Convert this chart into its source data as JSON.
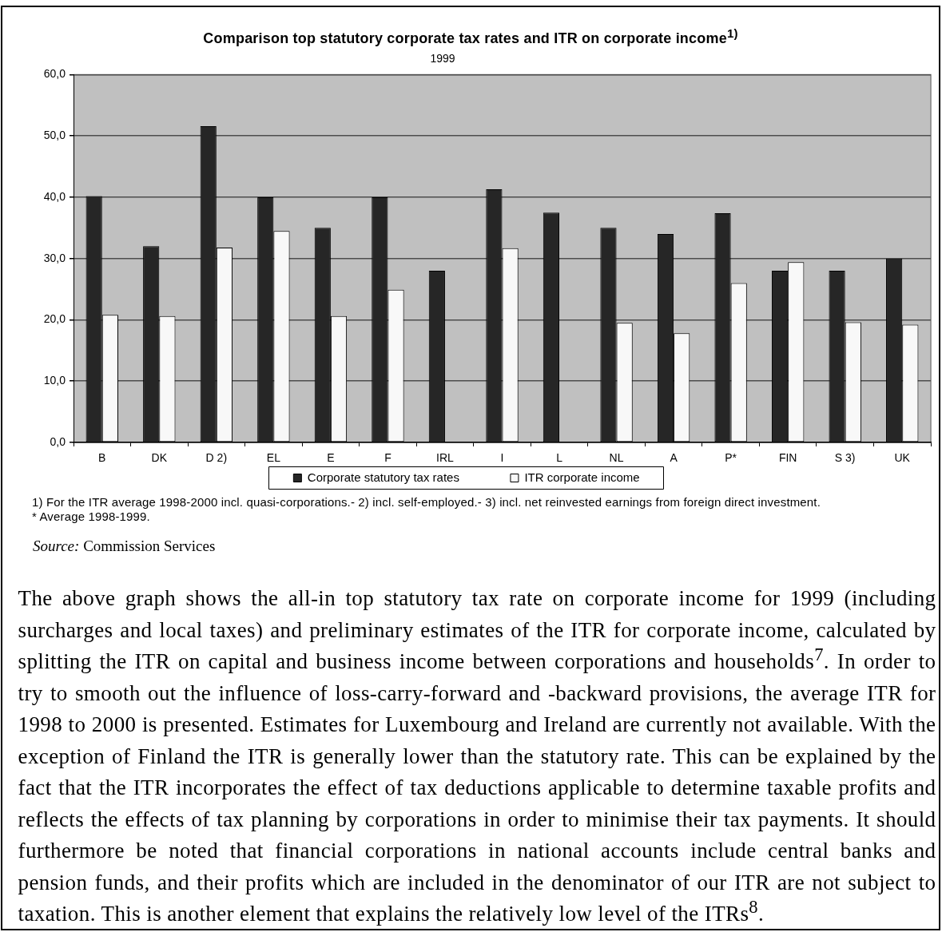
{
  "chart_data": {
    "type": "bar",
    "title": "Comparison top statutory corporate tax rates and ITR on corporate income$^{1)}$",
    "subtitle": "1999",
    "categories": [
      "B",
      "DK",
      "D 2)",
      "EL",
      "E",
      "F",
      "IRL",
      "I",
      "L",
      "NL",
      "A",
      "P*",
      "FIN",
      "S 3)",
      "UK"
    ],
    "series": [
      {
        "name": "Corporate statutory tax rates",
        "color": "#262626",
        "values": [
          40.2,
          32.0,
          51.6,
          40.0,
          35.0,
          40.0,
          28.0,
          41.3,
          37.5,
          35.0,
          34.0,
          37.4,
          28.0,
          28.0,
          30.0
        ]
      },
      {
        "name": "ITR corporate income",
        "color": "#f8f8f8",
        "values": [
          20.8,
          20.6,
          31.8,
          34.5,
          20.6,
          24.9,
          null,
          31.7,
          null,
          19.5,
          17.8,
          26.0,
          29.4,
          19.6,
          19.2
        ]
      }
    ],
    "ylim": [
      0,
      60
    ],
    "yticks": [
      {
        "value": 0,
        "label": "0,0"
      },
      {
        "value": 10,
        "label": "10,0"
      },
      {
        "value": 20,
        "label": "20,0"
      },
      {
        "value": 30,
        "label": "30,0"
      },
      {
        "value": 40,
        "label": "40,0"
      },
      {
        "value": 50,
        "label": "50,0"
      },
      {
        "value": 60,
        "label": "60,0"
      }
    ],
    "grid": "y",
    "legend": "bottom",
    "annotations": [
      "1) For the ITR average 1998-2000 incl. quasi-corporations.- 2) incl. self-employed.- 3) incl. net reinvested earnings from foreign direct investment.",
      "* Average 1998-1999.",
      "Source: Commission Services",
      "The above graph shows the all-in top statutory tax rate on corporate income for 1999 (including surcharges and local taxes) and preliminary estimates of the ITR for corporate income, calculated by splitting the ITR on capital and business income between corporations and households$^{7}$. In order to try to smooth out the influence of loss-carry-forward and -backward provisions, the average ITR for 1998 to 2000 is presented. Estimates for Luxembourg and Ireland are currently not available. With the exception of Finland the ITR is generally lower than the statutory rate. This can be explained by the fact that the ITR incorporates the effect of tax deductions applicable to determine taxable profits and reflects the effects of tax planning by corporations in order to minimise their tax payments. It should furthermore be noted that financial corporations in national accounts include central banks and pension funds, and their profits which are included in the denominator of our ITR are not subject to taxation. This is another element that explains the relatively low level of the ITRs$^{8}$."
    ]
  }
}
